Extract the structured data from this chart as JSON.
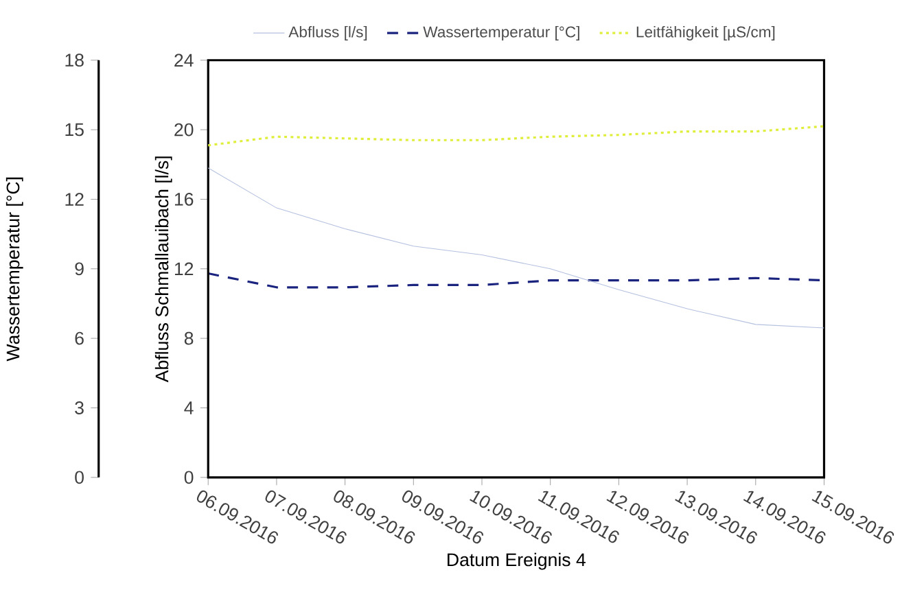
{
  "chart_data": {
    "type": "line",
    "xlabel": "Datum Ereignis 4",
    "ylabel": "Abfluss Schmallauibach [l/s]",
    "y2label": "Wassertemperatur [°C]",
    "x": [
      "2016-09-06",
      "2016-09-07",
      "2016-09-08",
      "2016-09-09",
      "2016-09-10",
      "2016-09-11",
      "2016-09-12",
      "2016-09-13",
      "2016-09-14",
      "2016-09-15"
    ],
    "xlim": [
      "2016-09-06",
      "2016-09-15"
    ],
    "xticks": [
      {
        "value": "2016-09-06",
        "label": "06.09.2016"
      },
      {
        "value": "2016-09-07",
        "label": "07.09.2016"
      },
      {
        "value": "2016-09-08",
        "label": "08.09.2016"
      },
      {
        "value": "2016-09-09",
        "label": "09.09.2016"
      },
      {
        "value": "2016-09-10",
        "label": "10.09.2016"
      },
      {
        "value": "2016-09-11",
        "label": "11.09.2016"
      },
      {
        "value": "2016-09-12",
        "label": "12.09.2016"
      },
      {
        "value": "2016-09-13",
        "label": "13.09.2016"
      },
      {
        "value": "2016-09-14",
        "label": "14.09.2016"
      },
      {
        "value": "2016-09-15",
        "label": "15.09.2016"
      }
    ],
    "ylim": [
      0,
      24
    ],
    "yticks": [
      0,
      4,
      8,
      12,
      16,
      20,
      24
    ],
    "y2lim": [
      0,
      18
    ],
    "y2ticks": [
      0,
      3,
      6,
      9,
      12,
      15,
      18
    ],
    "legend": "top",
    "series": [
      {
        "name": "Abfluss [l/s]",
        "color": "#b4c0e0",
        "line_style": "solid",
        "values": [
          17.8,
          15.5,
          14.3,
          13.3,
          12.8,
          12.0,
          10.8,
          9.7,
          8.8,
          8.6
        ]
      },
      {
        "name": "Wassertemperatur [°C]",
        "color": "#1a237e",
        "line_style": "dashed",
        "axis": "y2",
        "values": [
          8.8,
          8.2,
          8.2,
          8.3,
          8.3,
          8.5,
          8.5,
          8.5,
          8.6,
          8.5
        ]
      },
      {
        "name": "Leitfähigkeit [µS/cm]",
        "color": "#dfee3a",
        "line_style": "dotted",
        "values": [
          19.1,
          19.6,
          19.5,
          19.4,
          19.4,
          19.6,
          19.7,
          19.9,
          19.9,
          20.2
        ]
      }
    ]
  }
}
